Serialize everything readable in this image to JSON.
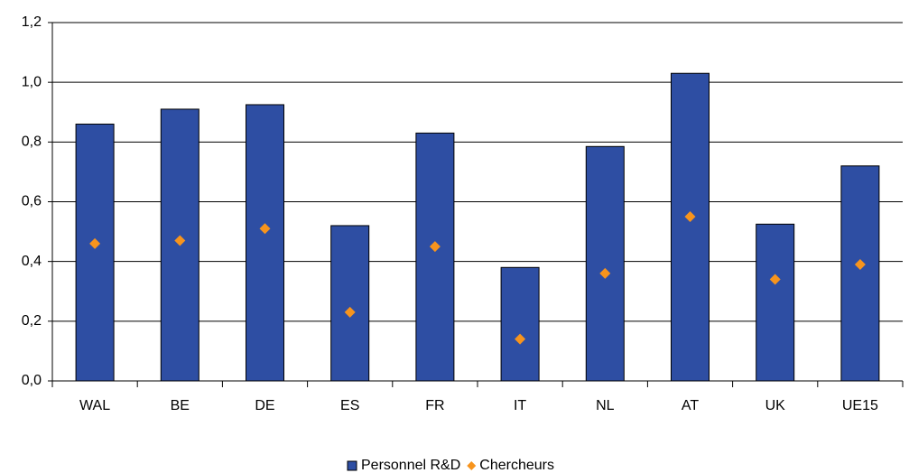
{
  "chart_data": {
    "type": "bar",
    "categories": [
      "WAL",
      "BE",
      "DE",
      "ES",
      "FR",
      "IT",
      "NL",
      "AT",
      "UK",
      "UE15"
    ],
    "series": [
      {
        "name": "Personnel R&D",
        "color": "#2e4ea3",
        "type": "bar",
        "values": [
          0.86,
          0.91,
          0.925,
          0.52,
          0.83,
          0.38,
          0.785,
          1.03,
          0.525,
          0.72
        ]
      },
      {
        "name": "Chercheurs",
        "color": "#f7941d",
        "type": "scatter",
        "values": [
          0.46,
          0.47,
          0.51,
          0.23,
          0.45,
          0.14,
          0.36,
          0.55,
          0.34,
          0.39
        ]
      }
    ],
    "ylim": [
      0,
      1.2
    ],
    "yticks": [
      {
        "value": 0,
        "label": "0,0"
      },
      {
        "value": 0.2,
        "label": "0,2"
      },
      {
        "value": 0.4,
        "label": "0,4"
      },
      {
        "value": 0.6,
        "label": "0,6"
      },
      {
        "value": 0.8,
        "label": "0,8"
      },
      {
        "value": 1.0,
        "label": "1,0"
      },
      {
        "value": 1.2,
        "label": "1,2"
      }
    ],
    "grid": true,
    "legend": "bottom"
  }
}
